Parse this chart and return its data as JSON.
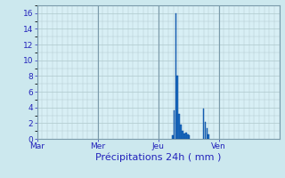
{
  "title": "Précipitations 24h ( mm )",
  "background_color": "#cce8ee",
  "plot_bg_color": "#d8eff5",
  "grid_color": "#aec8cc",
  "bar_color": "#1a6bbf",
  "bar_edge_color": "#0a4a9f",
  "ylim": [
    0,
    17
  ],
  "yticks": [
    0,
    2,
    4,
    6,
    8,
    10,
    12,
    14,
    16
  ],
  "day_labels": [
    "Mar",
    "Mer",
    "Jeu",
    "Ven"
  ],
  "day_positions": [
    0,
    72,
    144,
    216
  ],
  "total_slots": 288,
  "bars": [
    {
      "slot": 161,
      "value": 0.5
    },
    {
      "slot": 163,
      "value": 3.6
    },
    {
      "slot": 165,
      "value": 16.0
    },
    {
      "slot": 167,
      "value": 8.0
    },
    {
      "slot": 169,
      "value": 3.2
    },
    {
      "slot": 171,
      "value": 1.8
    },
    {
      "slot": 173,
      "value": 1.0
    },
    {
      "slot": 175,
      "value": 0.7
    },
    {
      "slot": 177,
      "value": 0.8
    },
    {
      "slot": 179,
      "value": 0.6
    },
    {
      "slot": 181,
      "value": 0.4
    },
    {
      "slot": 198,
      "value": 3.8
    },
    {
      "slot": 200,
      "value": 2.1
    },
    {
      "slot": 202,
      "value": 1.4
    },
    {
      "slot": 204,
      "value": 0.6
    }
  ],
  "bar_width": 1.8,
  "sep_color": "#7a9aaa",
  "tick_color": "#2222bb",
  "label_color": "#2222bb",
  "tick_fontsize": 6.5,
  "xlabel_fontsize": 8,
  "spine_color": "#7a9aaa"
}
